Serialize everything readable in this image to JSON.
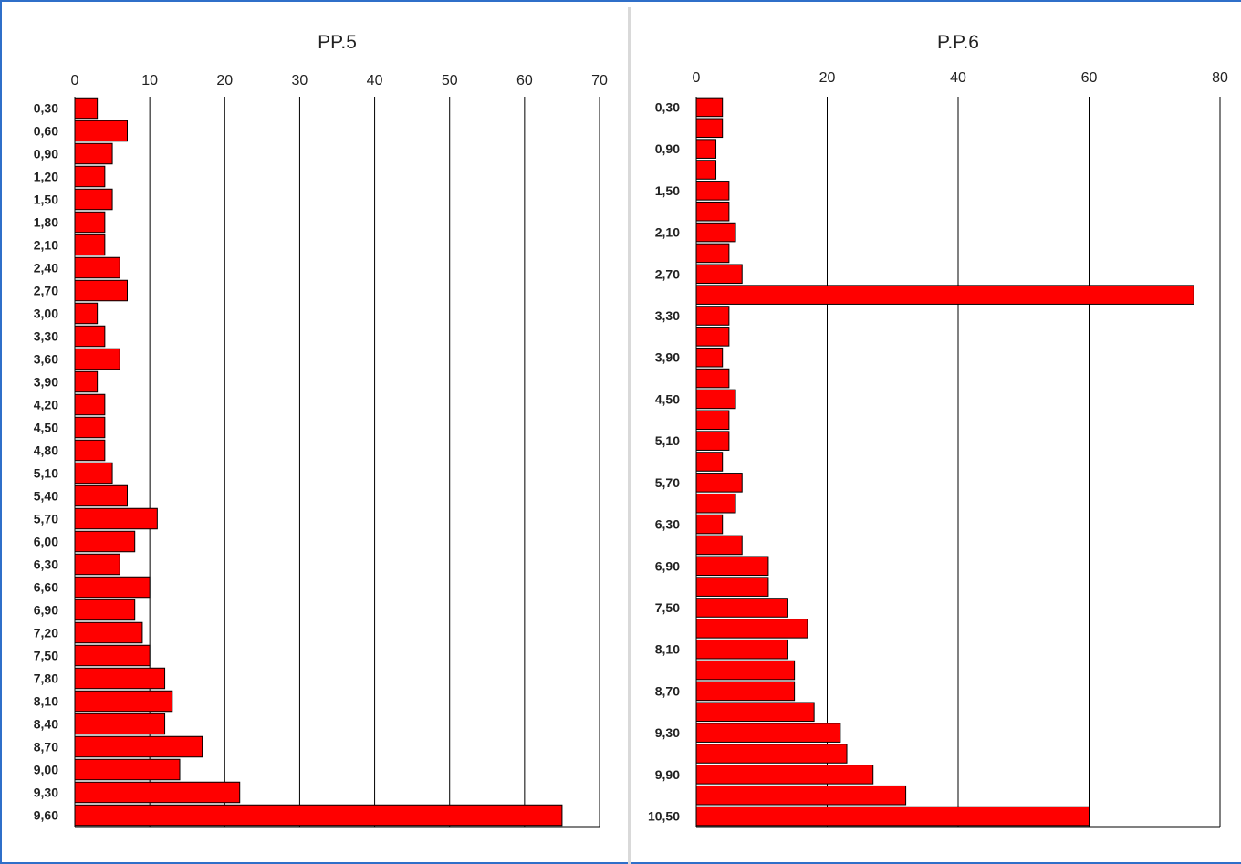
{
  "chart_data": [
    {
      "type": "bar",
      "orientation": "horizontal",
      "title": "PP.5",
      "xlim": [
        0,
        70
      ],
      "x_ticks": [
        "0",
        "10",
        "20",
        "30",
        "40",
        "50",
        "60",
        "70"
      ],
      "grid": "vertical",
      "bar_color": "#ff0000",
      "category_labels_every": 1,
      "categories": [
        "0,30",
        "0,60",
        "0,90",
        "1,20",
        "1,50",
        "1,80",
        "2,10",
        "2,40",
        "2,70",
        "3,00",
        "3,30",
        "3,60",
        "3,90",
        "4,20",
        "4,50",
        "4,80",
        "5,10",
        "5,40",
        "5,70",
        "6,00",
        "6,30",
        "6,60",
        "6,90",
        "7,20",
        "7,50",
        "7,80",
        "8,10",
        "8,40",
        "8,70",
        "9,00",
        "9,30",
        "9,60"
      ],
      "values": [
        3,
        7,
        5,
        4,
        5,
        4,
        4,
        6,
        7,
        3,
        4,
        6,
        3,
        4,
        4,
        4,
        5,
        7,
        11,
        8,
        6,
        10,
        8,
        9,
        10,
        12,
        13,
        12,
        17,
        14,
        22,
        65
      ]
    },
    {
      "type": "bar",
      "orientation": "horizontal",
      "title": "P.P.6",
      "xlim": [
        0,
        80
      ],
      "x_ticks": [
        "0",
        "20",
        "40",
        "60",
        "80"
      ],
      "grid": "vertical",
      "bar_color": "#ff0000",
      "category_labels_every": 2,
      "categories": [
        "0,30",
        "0,60",
        "0,90",
        "1,20",
        "1,50",
        "1,80",
        "2,10",
        "2,40",
        "2,70",
        "3,00",
        "3,30",
        "3,60",
        "3,90",
        "4,20",
        "4,50",
        "4,80",
        "5,10",
        "5,40",
        "5,70",
        "6,00",
        "6,30",
        "6,60",
        "6,90",
        "7,20",
        "7,50",
        "7,80",
        "8,10",
        "8,40",
        "8,70",
        "9,00",
        "9,30",
        "9,60",
        "9,90",
        "10,20",
        "10,50"
      ],
      "values": [
        4,
        4,
        3,
        3,
        5,
        5,
        6,
        5,
        7,
        76,
        5,
        5,
        4,
        5,
        6,
        5,
        5,
        4,
        7,
        6,
        4,
        7,
        11,
        11,
        14,
        17,
        14,
        15,
        15,
        18,
        22,
        23,
        27,
        32,
        60
      ]
    }
  ]
}
